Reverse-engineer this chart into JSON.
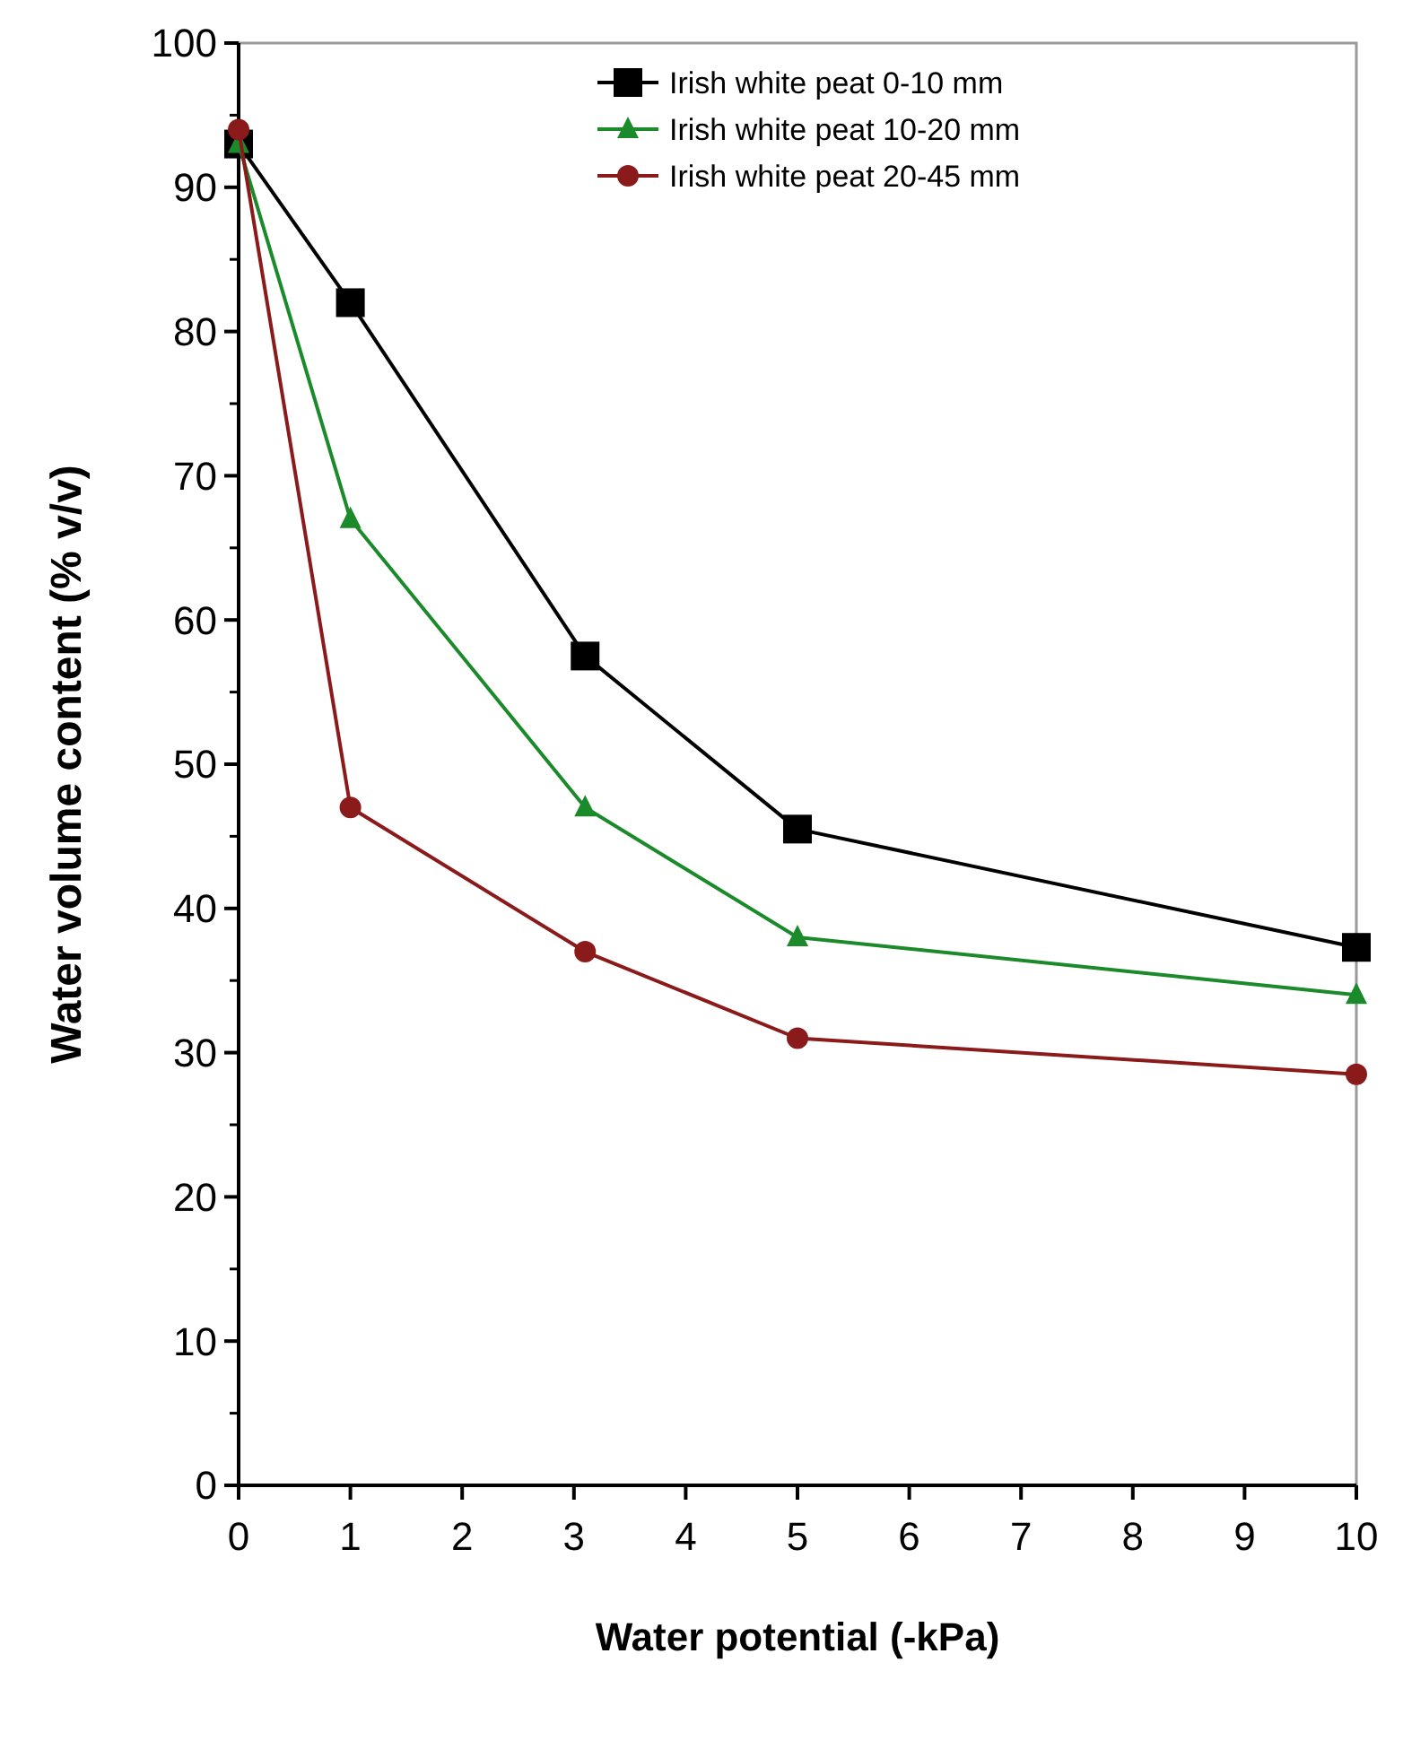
{
  "chart_data": {
    "type": "line",
    "xlabel": "Water potential (-kPa)",
    "ylabel": "Water volume content (% v/v)",
    "x": [
      0,
      1,
      3.1,
      5,
      10
    ],
    "xlim": [
      0,
      10
    ],
    "xticks": [
      0,
      1,
      2,
      3,
      4,
      5,
      6,
      7,
      8,
      9,
      10
    ],
    "ylim": [
      0,
      100
    ],
    "yticks": [
      0,
      10,
      20,
      30,
      40,
      50,
      60,
      70,
      80,
      90,
      100
    ],
    "grid": false,
    "legend": "top",
    "series": [
      {
        "name": "Irish white peat 0-10 mm",
        "color": "#000000",
        "marker": "square",
        "values": [
          93,
          82,
          57.5,
          45.5,
          37.3
        ]
      },
      {
        "name": "Irish white peat 10-20 mm",
        "color": "#1a8a2a",
        "marker": "triangle",
        "values": [
          93,
          67,
          47,
          38,
          34
        ]
      },
      {
        "name": "Irish white peat 20-45 mm",
        "color": "#8b1a1a",
        "marker": "circle",
        "values": [
          94,
          47,
          37,
          31,
          28.5
        ]
      }
    ]
  }
}
